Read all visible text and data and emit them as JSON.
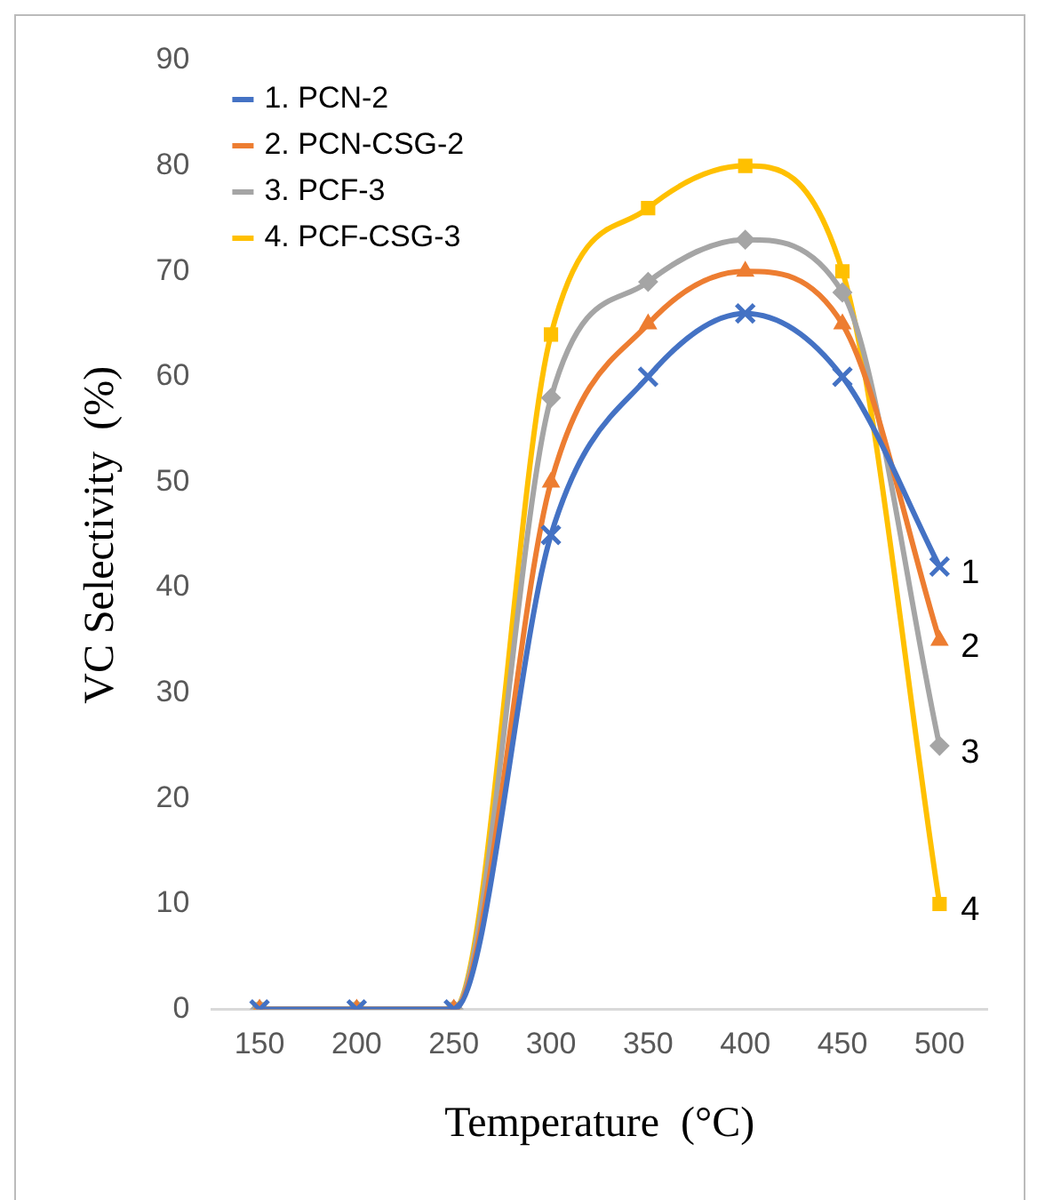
{
  "chart_data": {
    "type": "line",
    "xlabel": "Temperature  (°C)",
    "ylabel": "VC Selectivity  (%)",
    "x": [
      150,
      200,
      250,
      300,
      350,
      400,
      450,
      500
    ],
    "xlim": [
      125,
      525
    ],
    "xticks": [
      150,
      200,
      250,
      300,
      350,
      400,
      450,
      500
    ],
    "ylim": [
      0,
      90
    ],
    "yticks": [
      0,
      10,
      20,
      30,
      40,
      50,
      60,
      70,
      80,
      90
    ],
    "grid": false,
    "legend": "top left",
    "series": [
      {
        "name": "1. PCN-2",
        "color": "#4472c4",
        "marker": "cross",
        "values": [
          0,
          0,
          0,
          45,
          60,
          66,
          60,
          42
        ]
      },
      {
        "name": "2. PCN-CSG-2",
        "color": "#ed7d31",
        "marker": "triangle",
        "values": [
          0,
          0,
          0,
          50,
          65,
          70,
          65,
          35
        ]
      },
      {
        "name": "3. PCF-3",
        "color": "#a5a5a5",
        "marker": "diamond",
        "values": [
          0,
          0,
          0,
          58,
          69,
          73,
          68,
          25
        ]
      },
      {
        "name": "4. PCF-CSG-3",
        "color": "#ffc000",
        "marker": "square",
        "values": [
          0,
          0,
          0,
          64,
          76,
          80,
          70,
          10
        ]
      }
    ],
    "annotations": [
      "1",
      "2",
      "3",
      "4"
    ]
  }
}
